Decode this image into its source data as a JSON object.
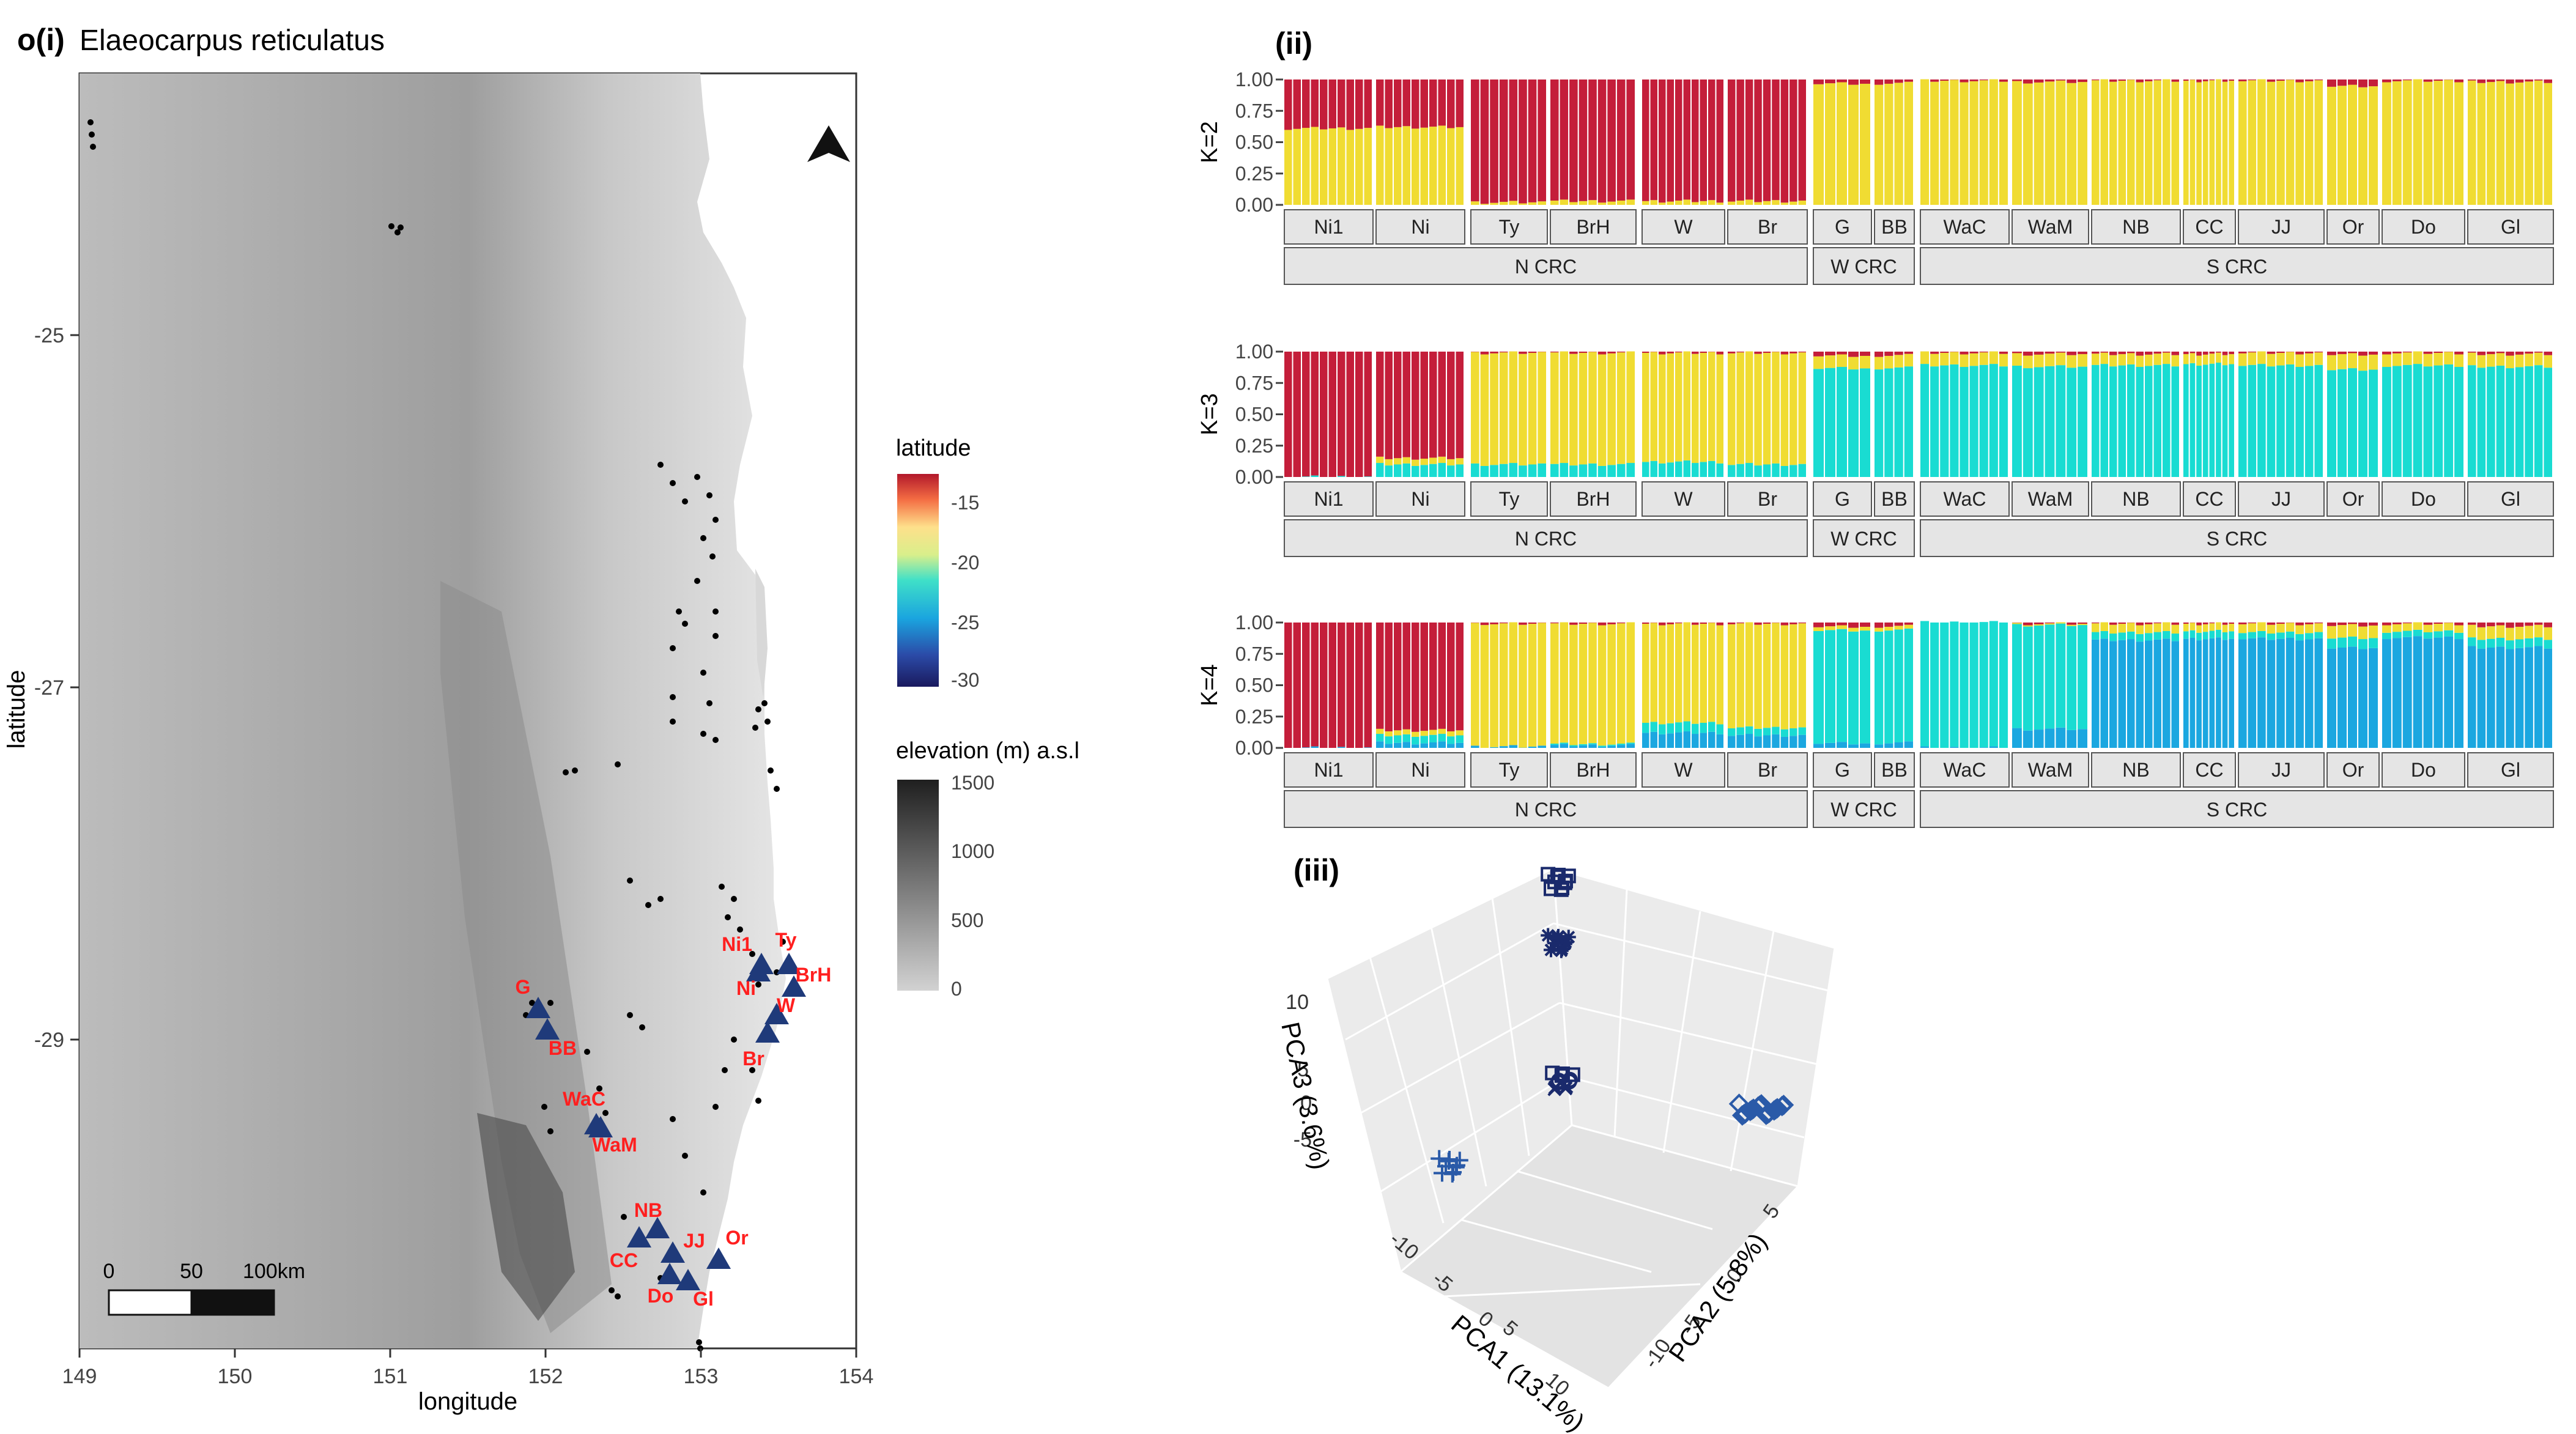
{
  "panel_labels": {
    "main": "o(i)",
    "ii": "(ii)",
    "iii": "(iii)"
  },
  "map": {
    "title": "Elaeocarpus reticulatus",
    "xlabel": "longitude",
    "ylabel": "latitude",
    "x_ticks": [
      "149",
      "150",
      "151",
      "152",
      "153",
      "154"
    ],
    "y_ticks": [
      "-25",
      "-27",
      "-29"
    ],
    "scalebar_labels": [
      "0",
      "50",
      "100km"
    ],
    "legend_latitude": {
      "title": "latitude",
      "ticks": [
        "-15",
        "-20",
        "-25",
        "-30"
      ]
    },
    "legend_elevation": {
      "title": "elevation (m) a.s.l",
      "ticks": [
        "1500",
        "1000",
        "500",
        "0"
      ]
    },
    "site_labels": [
      "Ni1",
      "Ty",
      "BrH",
      "Ni",
      "W",
      "Br",
      "G",
      "BB",
      "WaC",
      "WaM",
      "NB",
      "CC",
      "JJ",
      "Or",
      "Do",
      "Gl"
    ],
    "colors": {
      "site_label": "#ff1f1f",
      "triangle": "#1f3a7a",
      "points": "#000000"
    }
  },
  "chart_data": [
    {
      "type": "bar",
      "name": "K=2",
      "ylabel": "K=2",
      "ylim": [
        0,
        1
      ],
      "y_ticks": [
        "0.00",
        "0.25",
        "0.50",
        "0.75",
        "1.00"
      ],
      "populations": [
        "Ni1",
        "Ni",
        "Ty",
        "BrH",
        "W",
        "Br",
        "G",
        "BB",
        "WaC",
        "WaM",
        "NB",
        "CC",
        "JJ",
        "Or",
        "Do",
        "Gl"
      ],
      "regions": [
        "N CRC",
        "W CRC",
        "S CRC"
      ],
      "series_colors": [
        "#c41e3a",
        "#f0dc32"
      ],
      "clusters_per_population": [
        [
          0.39,
          0.61
        ],
        [
          0.38,
          0.62
        ],
        [
          0.98,
          0.02
        ],
        [
          0.97,
          0.03
        ],
        [
          0.97,
          0.03
        ],
        [
          0.97,
          0.03
        ],
        [
          0.03,
          0.97
        ],
        [
          0.03,
          0.97
        ],
        [
          0.01,
          0.99
        ],
        [
          0.02,
          0.98
        ],
        [
          0.01,
          0.99
        ],
        [
          0.01,
          0.99
        ],
        [
          0.01,
          0.99
        ],
        [
          0.05,
          0.95
        ],
        [
          0.01,
          0.99
        ],
        [
          0.02,
          0.98
        ]
      ]
    },
    {
      "type": "bar",
      "name": "K=3",
      "ylabel": "K=3",
      "ylim": [
        0,
        1
      ],
      "y_ticks": [
        "0.00",
        "0.25",
        "0.50",
        "0.75",
        "1.00"
      ],
      "populations": [
        "Ni1",
        "Ni",
        "Ty",
        "BrH",
        "W",
        "Br",
        "G",
        "BB",
        "WaC",
        "WaM",
        "NB",
        "CC",
        "JJ",
        "Or",
        "Do",
        "Gl"
      ],
      "regions": [
        "N CRC",
        "W CRC",
        "S CRC"
      ],
      "series_colors": [
        "#c41e3a",
        "#f0dc32",
        "#19dcd2"
      ],
      "clusters_per_population": [
        [
          1.0,
          0.0,
          0.0
        ],
        [
          0.85,
          0.05,
          0.1
        ],
        [
          0.01,
          0.89,
          0.1
        ],
        [
          0.01,
          0.89,
          0.1
        ],
        [
          0.01,
          0.87,
          0.12
        ],
        [
          0.01,
          0.89,
          0.1
        ],
        [
          0.03,
          0.1,
          0.87
        ],
        [
          0.03,
          0.1,
          0.87
        ],
        [
          0.01,
          0.1,
          0.89
        ],
        [
          0.02,
          0.1,
          0.88
        ],
        [
          0.02,
          0.09,
          0.89
        ],
        [
          0.02,
          0.08,
          0.9
        ],
        [
          0.01,
          0.1,
          0.89
        ],
        [
          0.02,
          0.12,
          0.86
        ],
        [
          0.01,
          0.1,
          0.89
        ],
        [
          0.02,
          0.1,
          0.88
        ]
      ]
    },
    {
      "type": "bar",
      "name": "K=4",
      "ylabel": "K=4",
      "ylim": [
        0,
        1
      ],
      "y_ticks": [
        "0.00",
        "0.25",
        "0.50",
        "0.75",
        "1.00"
      ],
      "populations": [
        "Ni1",
        "Ni",
        "Ty",
        "BrH",
        "W",
        "Br",
        "G",
        "BB",
        "WaC",
        "WaM",
        "NB",
        "CC",
        "JJ",
        "Or",
        "Do",
        "Gl"
      ],
      "regions": [
        "N CRC",
        "W CRC",
        "S CRC"
      ],
      "series_colors": [
        "#c41e3a",
        "#f0dc32",
        "#19dcd2",
        "#1ba7e0"
      ],
      "clusters_per_population": [
        [
          1.0,
          0.0,
          0.0,
          0.0
        ],
        [
          0.86,
          0.04,
          0.06,
          0.04
        ],
        [
          0.01,
          0.98,
          0.0,
          0.01
        ],
        [
          0.01,
          0.96,
          0.01,
          0.02
        ],
        [
          0.01,
          0.79,
          0.08,
          0.12
        ],
        [
          0.01,
          0.83,
          0.06,
          0.1
        ],
        [
          0.03,
          0.03,
          0.9,
          0.04
        ],
        [
          0.03,
          0.03,
          0.9,
          0.04
        ],
        [
          0.0,
          0.0,
          1.0,
          0.0
        ],
        [
          0.01,
          0.01,
          0.83,
          0.15
        ],
        [
          0.01,
          0.07,
          0.06,
          0.86
        ],
        [
          0.01,
          0.06,
          0.06,
          0.87
        ],
        [
          0.01,
          0.07,
          0.05,
          0.87
        ],
        [
          0.02,
          0.1,
          0.08,
          0.8
        ],
        [
          0.01,
          0.06,
          0.05,
          0.88
        ],
        [
          0.03,
          0.1,
          0.07,
          0.8
        ]
      ]
    },
    {
      "type": "scatter",
      "name": "PCA",
      "axis_titles": [
        "PCA1 (13.1%)",
        "PCA2 (5.8%)",
        "PCA3 (3.6%)"
      ],
      "x_ticks": [
        "-10",
        "-5",
        "0",
        "5",
        "10"
      ],
      "y_ticks": [
        "-10",
        "-5",
        "0",
        "5"
      ],
      "z_ticks": [
        "-5",
        "0",
        "5",
        "10"
      ]
    }
  ]
}
